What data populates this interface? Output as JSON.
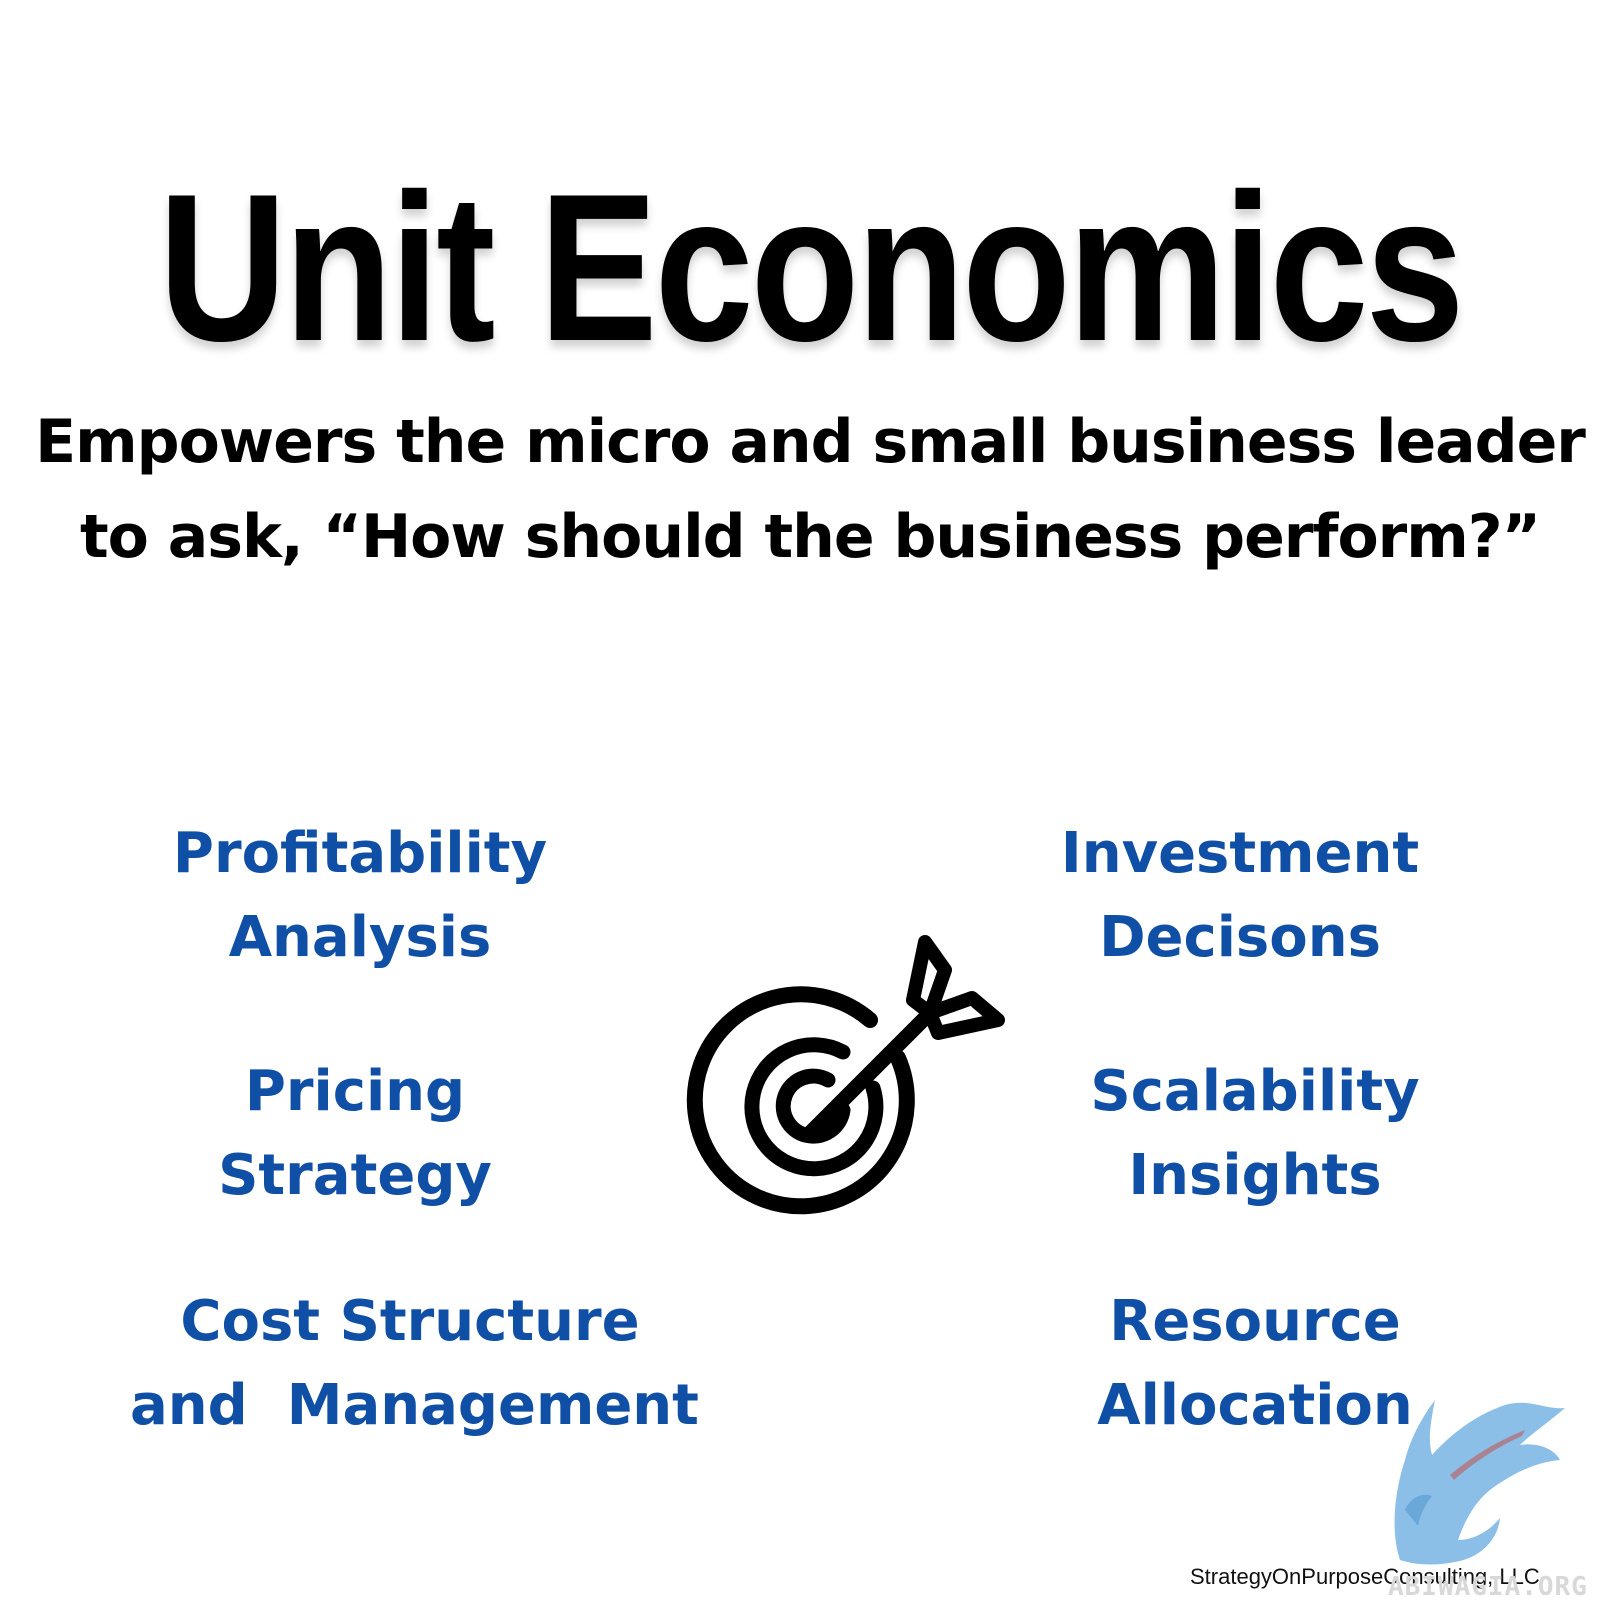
{
  "title": "Unit Economics",
  "subtitle": {
    "line1": "Empowers the micro and small business leader",
    "line2": "to ask, “How should the business perform?”"
  },
  "items": {
    "profitability": {
      "line1": "Profitability",
      "line2": "Analysis"
    },
    "pricing": {
      "line1": "Pricing",
      "line2": "Strategy"
    },
    "cost": {
      "line1": "Cost Structure",
      "line2": "and  Management"
    },
    "investment": {
      "line1": "Investment",
      "line2": "Decisons"
    },
    "scalability": {
      "line1": "Scalability",
      "line2": "Insights"
    },
    "resource": {
      "line1": "Resource",
      "line2": "Allocation"
    }
  },
  "icons": {
    "center": "target-arrow-icon",
    "logo": "griffin-logo"
  },
  "footer": "StrategyOnPurposeConsulting, LLC",
  "watermark": "ABIWAGIA.ORG",
  "colors": {
    "title": "#000000",
    "items": "#0f4fa5",
    "logo": "#7fb9e6"
  }
}
